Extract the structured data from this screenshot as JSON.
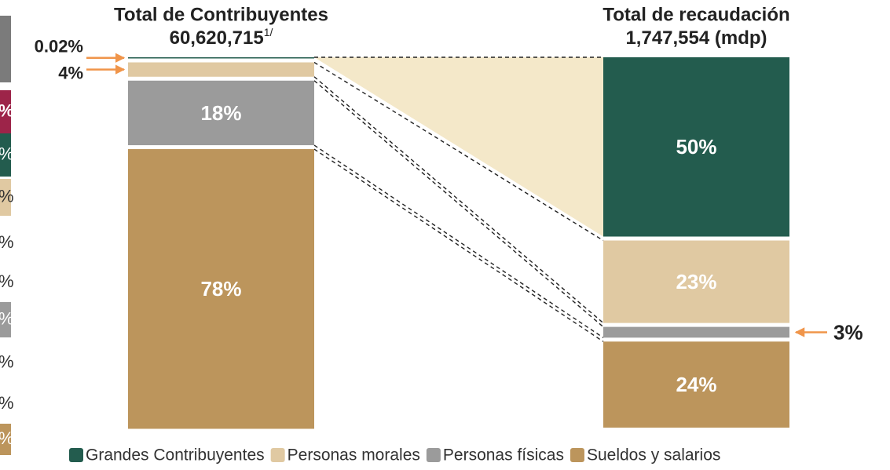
{
  "chart_data": {
    "type": "stacked_bar",
    "titles": [
      {
        "text": "Total de Contribuyentes",
        "subtitle": "60,620,715",
        "note": "1/"
      },
      {
        "text": "Total de recaudación",
        "subtitle": "1,747,554 (mdp)"
      }
    ],
    "categories": [
      null,
      null
    ],
    "series": [
      {
        "name": "Grandes Contribuyentes",
        "color": "#235c4e",
        "values": [
          0.02,
          50
        ],
        "value_labels": [
          "0.02%",
          "50%"
        ]
      },
      {
        "name": "Personas morales",
        "color": "#e0c9a2",
        "values": [
          4,
          23
        ],
        "value_labels": [
          "4%",
          "23%"
        ]
      },
      {
        "name": "Personas físicas",
        "color": "#9b9b9b",
        "values": [
          18,
          3
        ],
        "value_labels": [
          "18%",
          "3%"
        ]
      },
      {
        "name": "Sueldos y salarios",
        "color": "#bc955c",
        "values": [
          78,
          24
        ],
        "value_labels": [
          "78%",
          "24%"
        ]
      }
    ],
    "ylim": [
      0,
      100
    ],
    "legend": "bottom"
  },
  "side_fragments": [
    "%",
    "%",
    "%",
    "%",
    "%",
    "%",
    "%",
    "%",
    "%"
  ]
}
